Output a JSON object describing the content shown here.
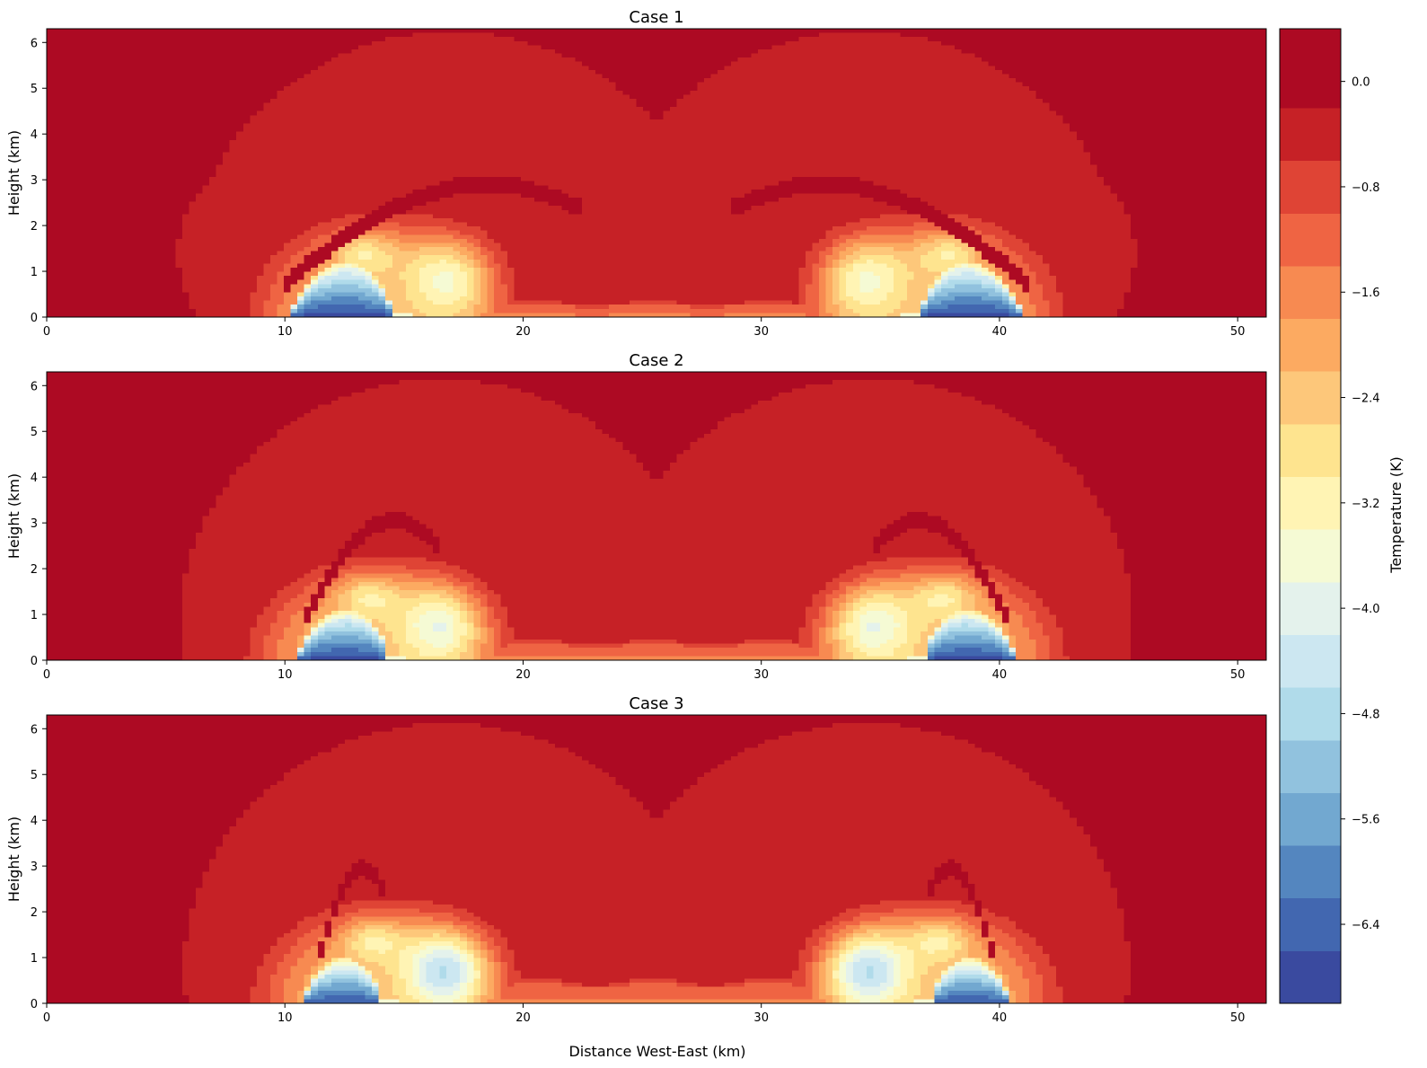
{
  "figure": {
    "xlabel": "Distance West-East (km)",
    "colorbar_label": "Temperature (K)"
  },
  "chart_data": [
    {
      "type": "heatmap",
      "title": "Case 1",
      "xlabel": "",
      "ylabel": "Height (km)",
      "xlim": [
        0,
        51.2
      ],
      "ylim": [
        0,
        6.3
      ],
      "xticks": [
        0,
        10,
        20,
        30,
        40,
        50
      ],
      "yticks": [
        0,
        1,
        2,
        3,
        4,
        5,
        6
      ],
      "background_value": -0.2,
      "symmetric_about_x": 25.6,
      "features": [
        {
          "kind": "cold_pool_core",
          "x_range": [
            10.5,
            15.2
          ],
          "height_max": 1.2,
          "min_value": -6.8
        },
        {
          "kind": "cool_blob",
          "x_center": 17.0,
          "y_center": 0.9,
          "min_value": -3.0
        },
        {
          "kind": "warm_arc",
          "x_range": [
            10.0,
            22.5
          ],
          "peak_height": 2.9,
          "value": 0.3
        },
        {
          "kind": "surface_band",
          "x_range": [
            20,
            31
          ],
          "height_max": 0.35,
          "value": -0.9
        }
      ]
    },
    {
      "type": "heatmap",
      "title": "Case 2",
      "xlabel": "",
      "ylabel": "Height (km)",
      "xlim": [
        0,
        51.2
      ],
      "ylim": [
        0,
        6.3
      ],
      "xticks": [
        0,
        10,
        20,
        30,
        40,
        50
      ],
      "yticks": [
        0,
        1,
        2,
        3,
        4,
        5,
        6
      ],
      "background_value": -0.2,
      "symmetric_about_x": 25.6,
      "features": [
        {
          "kind": "cold_pool_core",
          "x_range": [
            10.7,
            15.0
          ],
          "height_max": 1.1,
          "min_value": -6.8
        },
        {
          "kind": "cool_blob",
          "x_center": 16.6,
          "y_center": 0.8,
          "min_value": -3.2
        },
        {
          "kind": "warm_arc",
          "x_range": [
            10.7,
            16.5
          ],
          "peak_height": 3.05,
          "value": 0.3
        },
        {
          "kind": "surface_band",
          "x_range": [
            20,
            31
          ],
          "height_max": 0.45,
          "value": -0.9
        }
      ]
    },
    {
      "type": "heatmap",
      "title": "Case 3",
      "xlabel": "Distance West-East (km)",
      "ylabel": "Height (km)",
      "xlim": [
        0,
        51.2
      ],
      "ylim": [
        0,
        6.3
      ],
      "xticks": [
        0,
        10,
        20,
        30,
        40,
        50
      ],
      "yticks": [
        0,
        1,
        2,
        3,
        4,
        5,
        6
      ],
      "background_value": -0.2,
      "symmetric_about_x": 25.6,
      "features": [
        {
          "kind": "cold_pool_core",
          "x_range": [
            10.9,
            14.6
          ],
          "height_max": 1.0,
          "min_value": -6.6
        },
        {
          "kind": "cool_blob",
          "x_center": 16.8,
          "y_center": 0.75,
          "min_value": -4.0
        },
        {
          "kind": "warm_arc",
          "x_range": [
            11.3,
            14.2
          ],
          "peak_height": 2.95,
          "value": 0.3
        },
        {
          "kind": "surface_band",
          "x_range": [
            20,
            31
          ],
          "height_max": 0.55,
          "value": -0.9
        }
      ]
    }
  ],
  "colorbar": {
    "label": "Temperature (K)",
    "min": -7.0,
    "max": 0.4,
    "levels": [
      -7.0,
      -6.6,
      -6.2,
      -5.8,
      -5.4,
      -5.0,
      -4.6,
      -4.2,
      -3.8,
      -3.4,
      -3.0,
      -2.6,
      -2.2,
      -1.8,
      -1.4,
      -1.0,
      -0.6,
      -0.2,
      0.4
    ],
    "colors": [
      "#3a4a9f",
      "#4267b0",
      "#5486bf",
      "#72a8d0",
      "#91c2de",
      "#b0dbea",
      "#cce7f1",
      "#e4f2ec",
      "#f5fad4",
      "#fff4b4",
      "#fee48f",
      "#fdc77a",
      "#fcaa61",
      "#f78a51",
      "#ef6443",
      "#df4435",
      "#c62126",
      "#ad0a23"
    ],
    "ticks": [
      0.0,
      -0.8,
      -1.6,
      -2.4,
      -3.2,
      -4.0,
      -4.8,
      -5.6,
      -6.4
    ],
    "tick_labels": [
      "0.0",
      "−0.8",
      "−1.6",
      "−2.4",
      "−3.2",
      "−4.0",
      "−4.8",
      "−5.6",
      "−6.4"
    ]
  }
}
